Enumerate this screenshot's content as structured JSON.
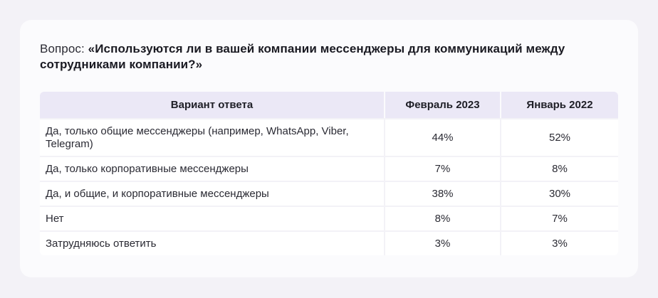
{
  "question": {
    "prefix": "Вопрос: ",
    "text": "«Используются ли в вашей компании мессенджеры для коммуникаций между сотрудниками компании?»"
  },
  "chart_data": {
    "type": "table",
    "columns": [
      "Вариант ответа",
      "Февраль 2023",
      "Январь 2022"
    ],
    "rows": [
      {
        "label": "Да, только общие мессенджеры (например, WhatsApp, Viber, Telegram)",
        "values": [
          "44%",
          "52%"
        ]
      },
      {
        "label": "Да, только корпоративные мессенджеры",
        "values": [
          "7%",
          "8%"
        ]
      },
      {
        "label": "Да, и общие, и корпоративные мессенджеры",
        "values": [
          "38%",
          "30%"
        ]
      },
      {
        "label": "Нет",
        "values": [
          "8%",
          "7%"
        ]
      },
      {
        "label": "Затрудняюсь ответить",
        "values": [
          "3%",
          "3%"
        ]
      }
    ]
  }
}
